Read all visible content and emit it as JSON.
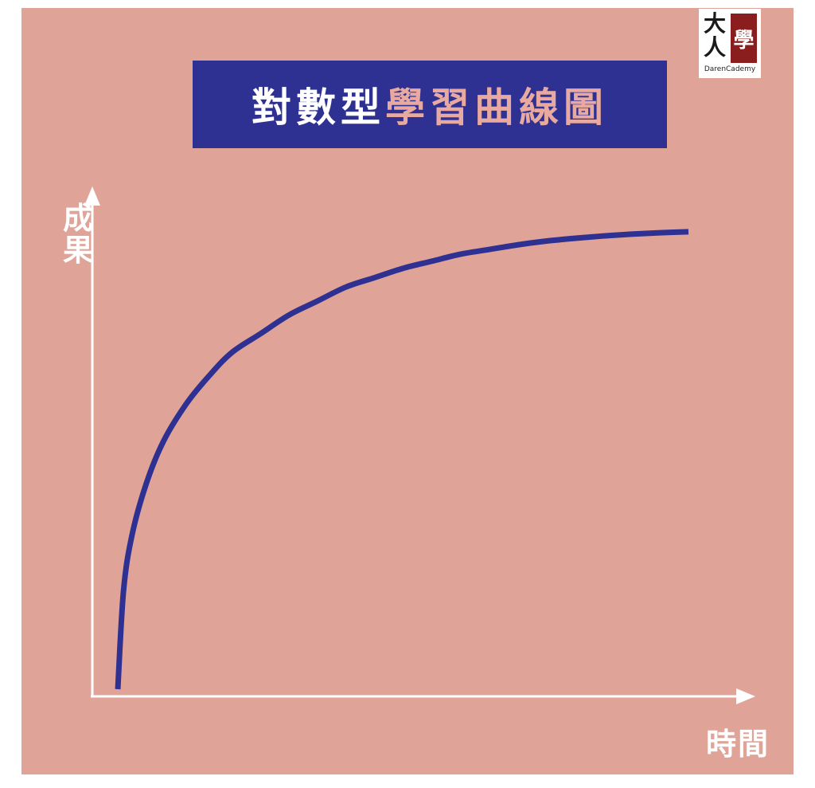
{
  "title": {
    "part1": "對數型",
    "part2": "學習曲線圖",
    "box_color": "#2e3192",
    "part1_color": "#ffffff",
    "part2_color": "#e8a9a0"
  },
  "logo": {
    "mark": "大人",
    "seal": "學",
    "text": "DarenCademy",
    "seal_color": "#8a1d1d"
  },
  "colors": {
    "background": "#e0a398",
    "axis": "#ffffff",
    "curve": "#2e3192"
  },
  "chart_data": {
    "type": "line",
    "title": "對數型學習曲線圖",
    "xlabel": "時間",
    "ylabel": "成果",
    "x_ticks": [],
    "y_ticks": [],
    "grid": false,
    "xlim": [
      0,
      100
    ],
    "ylim": [
      0,
      100
    ],
    "series": [
      {
        "x": [
          0,
          1,
          2.5,
          5,
          8,
          12,
          16,
          20,
          25,
          30,
          35,
          40,
          45,
          50,
          55,
          60,
          65,
          70,
          75,
          80,
          85,
          90,
          95,
          100
        ],
        "y": [
          0,
          21,
          33,
          44,
          53,
          61,
          67,
          72,
          76,
          80,
          83,
          86,
          88,
          90,
          91.5,
          93,
          94,
          95,
          95.8,
          96.4,
          96.9,
          97.3,
          97.6,
          97.8
        ]
      }
    ]
  }
}
